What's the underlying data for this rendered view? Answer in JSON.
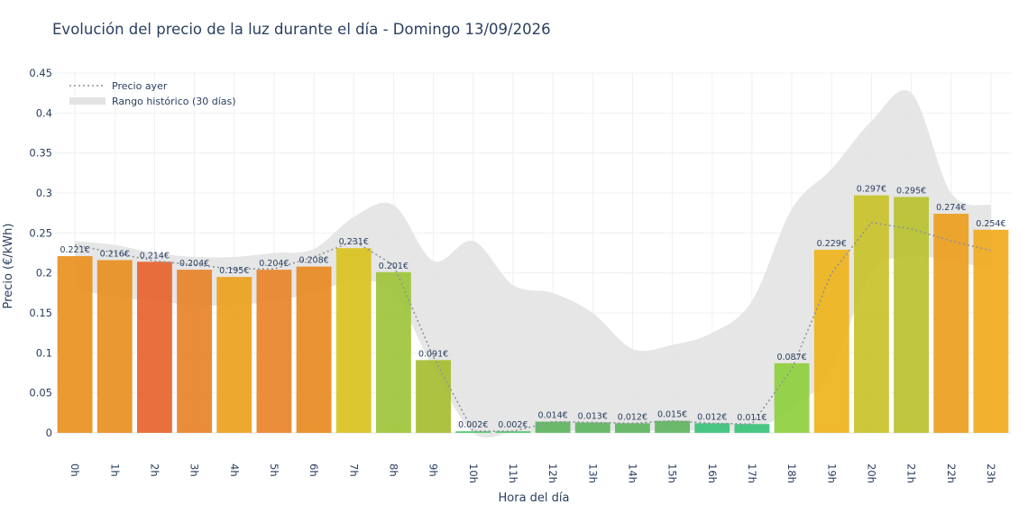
{
  "chart_data": {
    "type": "bar",
    "title": "Evolución del precio de la luz durante el día - Domingo 13/09/2026",
    "xlabel": "Hora del día",
    "ylabel": "Precio (€/kWh)",
    "ylim": [
      0,
      0.45
    ],
    "yticks": [
      0,
      0.05,
      0.1,
      0.15,
      0.2,
      0.25,
      0.3,
      0.35,
      0.4,
      0.45
    ],
    "ytick_labels": [
      "0",
      "0.05",
      "0.1",
      "0.15",
      "0.2",
      "0.25",
      "0.3",
      "0.35",
      "0.4",
      "0.45"
    ],
    "grid": true,
    "legend_position": "top-left",
    "categories": [
      "0h",
      "1h",
      "2h",
      "3h",
      "4h",
      "5h",
      "6h",
      "7h",
      "8h",
      "9h",
      "10h",
      "11h",
      "12h",
      "13h",
      "14h",
      "15h",
      "16h",
      "17h",
      "18h",
      "19h",
      "20h",
      "21h",
      "22h",
      "23h"
    ],
    "values": [
      0.221,
      0.216,
      0.214,
      0.204,
      0.195,
      0.204,
      0.208,
      0.231,
      0.201,
      0.091,
      0.002,
      0.002,
      0.014,
      0.013,
      0.012,
      0.015,
      0.012,
      0.011,
      0.087,
      0.229,
      0.297,
      0.295,
      0.274,
      0.254
    ],
    "data_labels": [
      "0.221€",
      "0.216€",
      "0.214€",
      "0.204€",
      "0.195€",
      "0.204€",
      "0.208€",
      "0.231€",
      "0.201€",
      "0.091€",
      "0.002€",
      "0.002€",
      "0.014€",
      "0.013€",
      "0.012€",
      "0.015€",
      "0.012€",
      "0.011€",
      "0.087€",
      "0.229€",
      "0.297€",
      "0.295€",
      "0.274€",
      "0.254€"
    ],
    "bar_colors": [
      "#e8911f",
      "#e88f1f",
      "#e8632f",
      "#e8832a",
      "#eca21d",
      "#e8842a",
      "#e88a22",
      "#d9c21e",
      "#9ec43a",
      "#a7bd31",
      "#4cc46a",
      "#4cc46a",
      "#5fb55f",
      "#5fb55f",
      "#5fb55f",
      "#5fb55f",
      "#3cc27a",
      "#3cc27a",
      "#8fcf3e",
      "#eeb41c",
      "#c9c22a",
      "#b8c22c",
      "#ec9e1e",
      "#efab1d"
    ],
    "series": [
      {
        "name": "Precio ayer",
        "style": "dotted",
        "color": "#8d949c",
        "values": [
          0.235,
          0.225,
          0.215,
          0.21,
          0.205,
          0.205,
          0.22,
          0.24,
          0.21,
          0.095,
          0.002,
          0.002,
          0.014,
          0.013,
          0.012,
          0.015,
          0.012,
          0.011,
          0.08,
          0.2,
          0.263,
          0.255,
          0.24,
          0.228
        ]
      },
      {
        "name": "Rango histórico (30 días)",
        "style": "band",
        "color": "#e3e3e3",
        "upper": [
          0.24,
          0.235,
          0.225,
          0.22,
          0.22,
          0.225,
          0.23,
          0.27,
          0.285,
          0.215,
          0.24,
          0.185,
          0.175,
          0.15,
          0.105,
          0.11,
          0.125,
          0.165,
          0.28,
          0.33,
          0.39,
          0.425,
          0.3,
          0.285
        ],
        "lower": [
          0.18,
          0.17,
          0.165,
          0.16,
          0.16,
          0.165,
          0.175,
          0.19,
          0.175,
          0.08,
          0.0,
          0.0,
          0.002,
          0.002,
          0.002,
          0.003,
          0.003,
          0.004,
          0.03,
          0.08,
          0.2,
          0.22,
          0.215,
          0.205
        ]
      }
    ]
  }
}
